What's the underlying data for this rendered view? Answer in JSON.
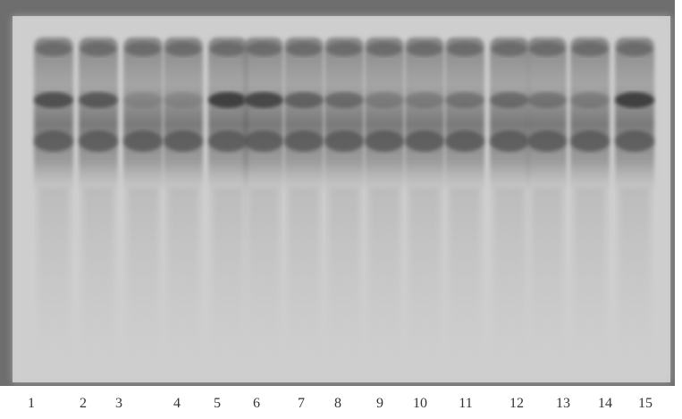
{
  "lanes": [
    "1",
    "2",
    "3",
    "4",
    "5",
    "6",
    "7",
    "8",
    "9",
    "10",
    "11",
    "12",
    "13",
    "14",
    "15"
  ]
}
